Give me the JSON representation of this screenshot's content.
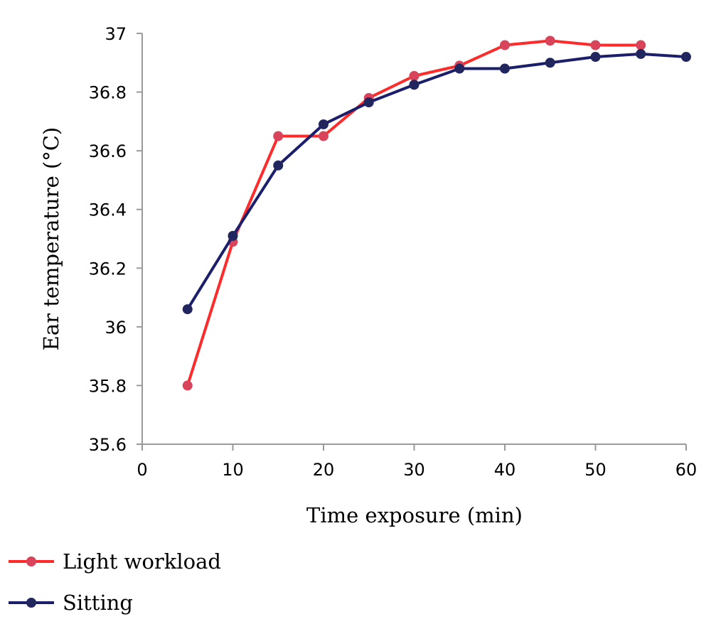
{
  "chart_data": {
    "type": "line",
    "title": "",
    "xlabel": "Time exposure (min)",
    "ylabel": "Ear temperature (°C)",
    "xlim": [
      0,
      60
    ],
    "ylim": [
      35.6,
      37
    ],
    "x_ticks": [
      "0",
      "10",
      "20",
      "30",
      "40",
      "50",
      "60"
    ],
    "y_ticks": [
      "35.6",
      "35.8",
      "36",
      "36.2",
      "36.4",
      "36.6",
      "36.8",
      "37"
    ],
    "grid": false,
    "legend_position": "bottom-left",
    "series": [
      {
        "name": "Light workload",
        "color": "#ff2a2a",
        "marker_color": "#d9445a",
        "x": [
          5,
          10,
          15,
          20,
          25,
          30,
          35,
          40,
          45,
          50,
          55
        ],
        "y": [
          35.8,
          36.29,
          36.65,
          36.65,
          36.78,
          36.855,
          36.89,
          36.96,
          36.975,
          36.96,
          36.96
        ]
      },
      {
        "name": "Sitting",
        "color": "#1b1f6b",
        "marker_color": "#22265e",
        "x": [
          5,
          10,
          15,
          20,
          25,
          30,
          35,
          40,
          45,
          50,
          55,
          60
        ],
        "y": [
          36.06,
          36.31,
          36.55,
          36.69,
          36.765,
          36.825,
          36.88,
          36.88,
          36.9,
          36.92,
          36.93,
          36.92
        ]
      }
    ]
  }
}
